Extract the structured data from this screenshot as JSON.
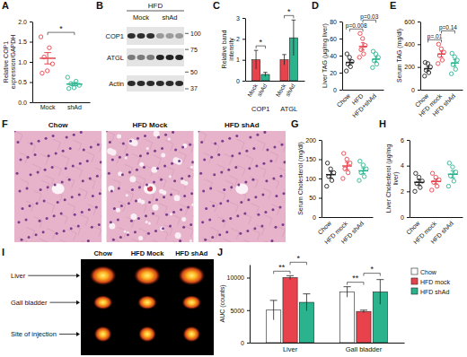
{
  "chart_data": [
    {
      "panel": "A",
      "type": "dot",
      "y_label": "Relative COP1 expression/GAPDH",
      "categories": [
        "Mock",
        "shAd"
      ],
      "colors": [
        "#e8434c",
        "#2bb38e"
      ],
      "points": [
        [
          1.62,
          1.35,
          1.12,
          0.95,
          0.78,
          0.72
        ],
        [
          0.62,
          0.52,
          0.46,
          0.42,
          0.36,
          0.34
        ]
      ],
      "means": [
        1.09,
        0.45
      ],
      "errors": [
        0.14,
        0.04
      ],
      "ylim": [
        0,
        2
      ],
      "yticks": [
        {
          "value": 0,
          "label": "0.0"
        },
        {
          "value": 0.5,
          "label": "0.5"
        },
        {
          "value": 1,
          "label": "1.0"
        },
        {
          "value": 1.5,
          "label": "1.5"
        },
        {
          "value": 2,
          "label": "2.0"
        }
      ],
      "annotations": [
        {
          "text": "*",
          "from": "Mock",
          "to": "shAd"
        }
      ]
    },
    {
      "panel": "C",
      "type": "bar",
      "y_label": "Relative band intensity",
      "categories": [
        "COP1",
        "ATGL"
      ],
      "series": [
        {
          "name": "Mock",
          "color": "#e8434c",
          "values": [
            1.0,
            1.0
          ],
          "errors": [
            0.45,
            0.25
          ]
        },
        {
          "name": "shAd",
          "color": "#2bb38e",
          "values": [
            0.3,
            2.05
          ],
          "errors": [
            0.1,
            0.85
          ]
        }
      ],
      "ylim": [
        0,
        3
      ],
      "yticks": [
        0,
        1,
        2,
        3
      ],
      "annotations": [
        {
          "text": "*",
          "category": "COP1",
          "from": "Mock",
          "to": "shAd"
        },
        {
          "text": "*",
          "category": "ATGL",
          "from": "Mock",
          "to": "shAd"
        }
      ]
    },
    {
      "panel": "D",
      "type": "dot",
      "y_label": "Liver TAG (µg/mg liver)",
      "categories": [
        "Chow",
        "HFD",
        "HFD+shAd"
      ],
      "colors": [
        "#222222",
        "#e8434c",
        "#2bb38e"
      ],
      "points": [
        [
          22,
          27,
          30,
          33,
          38,
          42
        ],
        [
          38,
          42,
          47,
          52,
          60,
          66
        ],
        [
          26,
          30,
          34,
          38,
          42,
          45
        ]
      ],
      "means": [
        32,
        50.8,
        35.8
      ],
      "errors": [
        3.0,
        4.3,
        2.9
      ],
      "ylim": [
        0,
        80
      ],
      "yticks": [
        0,
        20,
        40,
        60,
        80
      ],
      "annotations": [
        {
          "text": "p=0.008",
          "from": "Chow",
          "to": "HFD"
        },
        {
          "text": "p=0.03",
          "from": "HFD",
          "to": "HFD+shAd"
        }
      ]
    },
    {
      "panel": "E",
      "type": "dot",
      "y_label": "Serum TAG (mg/dl)",
      "categories": [
        "Chow",
        "HFD mock",
        "HFD shAd"
      ],
      "colors": [
        "#222222",
        "#e8434c",
        "#2bb38e"
      ],
      "points": [
        [
          120,
          150,
          170,
          200,
          230,
          240
        ],
        [
          230,
          260,
          300,
          330,
          360,
          400
        ],
        [
          140,
          180,
          220,
          260,
          290,
          320
        ]
      ],
      "means": [
        185,
        313,
        235
      ],
      "errors": [
        19,
        25,
        28
      ],
      "ylim": [
        0,
        600
      ],
      "yticks": [
        0,
        200,
        400,
        600
      ],
      "annotations": [
        {
          "text": "p=.01",
          "from": "Chow",
          "to": "HFD mock"
        },
        {
          "text": "p=0.14",
          "from": "HFD mock",
          "to": "HFD shAd"
        }
      ]
    },
    {
      "panel": "G",
      "type": "dot",
      "y_label": "Serum Cholesterol (mg/dl)",
      "categories": [
        "Chow",
        "HFD mock",
        "HFD shAd"
      ],
      "colors": [
        "#222222",
        "#e8434c",
        "#2bb38e"
      ],
      "points": [
        [
          80,
          95,
          105,
          115,
          125,
          140
        ],
        [
          100,
          115,
          125,
          140,
          150,
          165
        ],
        [
          95,
          105,
          115,
          125,
          135,
          145
        ]
      ],
      "means": [
        110,
        132.5,
        120
      ],
      "errors": [
        8.6,
        9.6,
        7.6
      ],
      "ylim": [
        0,
        200
      ],
      "yticks": [
        0,
        50,
        100,
        150,
        200
      ]
    },
    {
      "panel": "H",
      "type": "dot",
      "y_label": "Liver Cholesterol (µg/mg liver)",
      "categories": [
        "Chow",
        "HFD mock",
        "HFD shAd"
      ],
      "colors": [
        "#222222",
        "#e8434c",
        "#2bb38e"
      ],
      "points": [
        [
          2.0,
          2.3,
          2.6,
          2.8,
          3.1,
          3.4
        ],
        [
          2.1,
          2.4,
          2.7,
          2.9,
          3.1,
          3.4
        ],
        [
          2.4,
          2.8,
          3.2,
          3.5,
          3.9,
          4.2
        ]
      ],
      "means": [
        2.7,
        2.77,
        3.33
      ],
      "errors": [
        0.21,
        0.19,
        0.28
      ],
      "ylim": [
        0,
        6
      ],
      "yticks": [
        0,
        2,
        4,
        6
      ]
    },
    {
      "panel": "J",
      "type": "bar",
      "y_label": "AUC (counts)",
      "categories": [
        "Liver",
        "Gall bladder"
      ],
      "series": [
        {
          "name": "Chow",
          "color": "#ffffff",
          "values": [
            5000,
            7800
          ],
          "errors": [
            1500,
            800
          ]
        },
        {
          "name": "HFD mock",
          "color": "#e8434c",
          "values": [
            10000,
            4800
          ],
          "errors": [
            300,
            200
          ]
        },
        {
          "name": "HFD shAd",
          "color": "#2bb38e",
          "values": [
            6200,
            7800
          ],
          "errors": [
            1300,
            1900
          ]
        }
      ],
      "ylim": [
        0,
        12000
      ],
      "yticks": [
        0,
        5000,
        10000
      ],
      "legend": "right",
      "annotations": [
        {
          "text": "**",
          "category": "Liver",
          "from": "Chow",
          "to": "HFD mock"
        },
        {
          "text": "*",
          "category": "Liver",
          "from": "HFD mock",
          "to": "HFD shAd"
        },
        {
          "text": "**",
          "category": "Gall bladder",
          "from": "Chow",
          "to": "HFD mock"
        },
        {
          "text": "*",
          "category": "Gall bladder",
          "from": "HFD mock",
          "to": "HFD shAd"
        }
      ]
    }
  ],
  "images": [
    {
      "panel": "B",
      "header": "HFD",
      "lanes": [
        "Mock",
        "shAd"
      ],
      "bands": [
        "COP1",
        "ATGL",
        "Actin"
      ],
      "markers": [
        100,
        75,
        50,
        37
      ]
    },
    {
      "panel": "F",
      "labels": [
        "Chow",
        "HFD Mock",
        "HFD shAd"
      ]
    },
    {
      "panel": "I",
      "labels": [
        "Chow",
        "HFD Mock",
        "HFD shAd"
      ],
      "organs": [
        "Liver",
        "Gall bladder",
        "Site of injection"
      ]
    }
  ]
}
